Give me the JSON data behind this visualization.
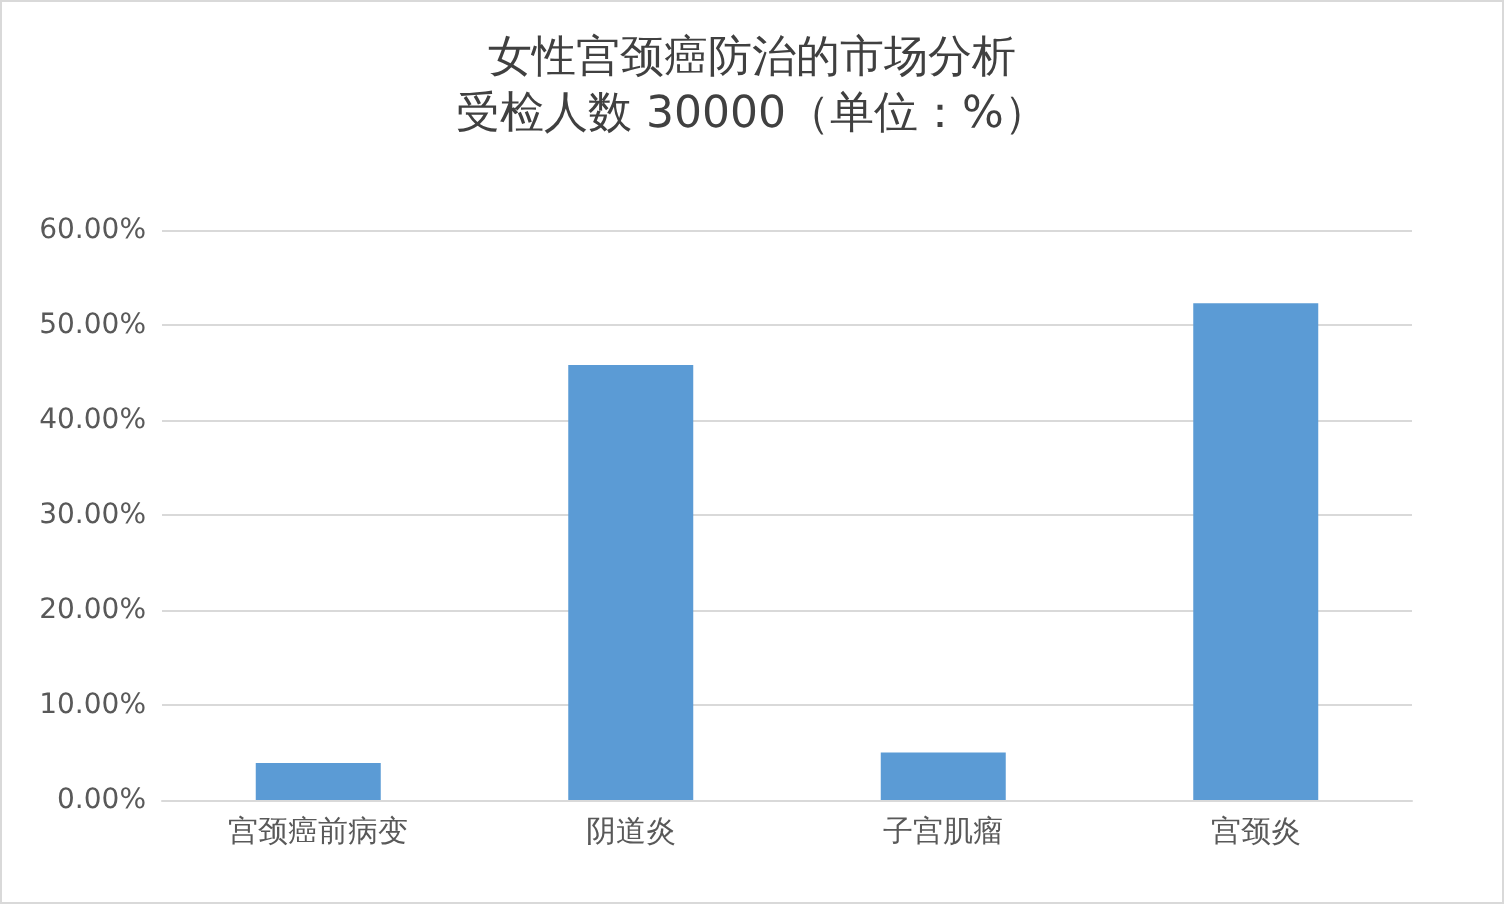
{
  "chart_data": {
    "type": "bar",
    "title": "女性宫颈癌防治的市场分析",
    "subtitle": "受检人数 30000（单位：%）",
    "categories": [
      "宫颈癌前病变",
      "阴道炎",
      "子宫肌瘤",
      "宫颈炎"
    ],
    "values": [
      3.9,
      45.8,
      5.0,
      52.3
    ],
    "color": "#5b9bd5",
    "ylim": [
      0,
      60
    ],
    "yticks": [
      {
        "value": 0,
        "label": "0.00%"
      },
      {
        "value": 10,
        "label": "10.00%"
      },
      {
        "value": 20,
        "label": "20.00%"
      },
      {
        "value": 30,
        "label": "30.00%"
      },
      {
        "value": 40,
        "label": "40.00%"
      },
      {
        "value": 50,
        "label": "50.00%"
      },
      {
        "value": 60,
        "label": "60.00%"
      }
    ],
    "grid": "y"
  }
}
